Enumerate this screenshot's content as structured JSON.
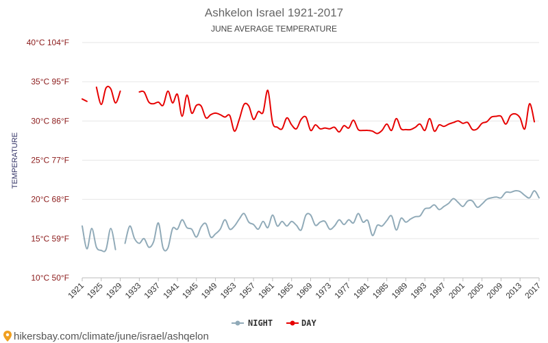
{
  "chart_data": {
    "type": "line",
    "title": "Ashkelon Israel 1921-2017",
    "subtitle": "JUNE AVERAGE TEMPERATURE",
    "ylabel": "TEMPERATURE",
    "xlabel": "",
    "xlim": [
      1921,
      2017
    ],
    "ylim": [
      10,
      40
    ],
    "grid": true,
    "legend": "bottom-center",
    "x_ticks": [
      "1921",
      "1925",
      "1929",
      "1933",
      "1937",
      "1941",
      "1945",
      "1949",
      "1953",
      "1957",
      "1961",
      "1965",
      "1969",
      "1973",
      "1977",
      "1981",
      "1985",
      "1989",
      "1993",
      "1997",
      "2001",
      "2005",
      "2009",
      "2013",
      "2017"
    ],
    "y_ticks": [
      {
        "value": 10,
        "label": "10°C 50°F"
      },
      {
        "value": 15,
        "label": "15°C 59°F"
      },
      {
        "value": 20,
        "label": "20°C 68°F"
      },
      {
        "value": 25,
        "label": "25°C 77°F"
      },
      {
        "value": 30,
        "label": "30°C 86°F"
      },
      {
        "value": 35,
        "label": "35°C 95°F"
      },
      {
        "value": 40,
        "label": "40°C 104°F"
      }
    ],
    "series": [
      {
        "name": "NIGHT",
        "color": "#90aab8",
        "points": [
          [
            1921,
            16.6
          ],
          [
            1922,
            13.7
          ],
          [
            1923,
            16.3
          ],
          [
            1924,
            13.9
          ],
          [
            1925,
            13.5
          ],
          [
            1926,
            13.6
          ],
          [
            1927,
            16.3
          ],
          [
            1928,
            13.6
          ],
          null,
          [
            1930,
            14.4
          ],
          [
            1931,
            16.6
          ],
          [
            1932,
            15.0
          ],
          [
            1933,
            14.4
          ],
          [
            1934,
            15.0
          ],
          [
            1935,
            13.9
          ],
          [
            1936,
            14.6
          ],
          [
            1937,
            17.0
          ],
          [
            1938,
            13.8
          ],
          [
            1939,
            13.8
          ],
          [
            1940,
            16.3
          ],
          [
            1941,
            16.2
          ],
          [
            1942,
            17.4
          ],
          [
            1943,
            16.4
          ],
          [
            1944,
            16.2
          ],
          [
            1945,
            15.2
          ],
          [
            1946,
            16.5
          ],
          [
            1947,
            16.9
          ],
          [
            1948,
            15.2
          ],
          [
            1949,
            15.6
          ],
          [
            1950,
            16.2
          ],
          [
            1951,
            17.4
          ],
          [
            1952,
            16.2
          ],
          [
            1953,
            16.6
          ],
          [
            1954,
            17.5
          ],
          [
            1955,
            18.2
          ],
          [
            1956,
            17.1
          ],
          [
            1957,
            16.8
          ],
          [
            1958,
            16.2
          ],
          [
            1959,
            17.2
          ],
          [
            1960,
            16.4
          ],
          [
            1961,
            18.0
          ],
          [
            1962,
            16.6
          ],
          [
            1963,
            17.2
          ],
          [
            1964,
            16.6
          ],
          [
            1965,
            17.2
          ],
          [
            1966,
            16.7
          ],
          [
            1967,
            16.1
          ],
          [
            1968,
            18.0
          ],
          [
            1969,
            18.0
          ],
          [
            1970,
            16.7
          ],
          [
            1971,
            17.1
          ],
          [
            1972,
            17.2
          ],
          [
            1973,
            16.2
          ],
          [
            1974,
            16.6
          ],
          [
            1975,
            17.4
          ],
          [
            1976,
            16.8
          ],
          [
            1977,
            17.4
          ],
          [
            1978,
            17.0
          ],
          [
            1979,
            18.2
          ],
          [
            1980,
            17.1
          ],
          [
            1981,
            17.3
          ],
          [
            1982,
            15.4
          ],
          [
            1983,
            16.7
          ],
          [
            1984,
            16.6
          ],
          [
            1985,
            17.3
          ],
          [
            1986,
            17.9
          ],
          [
            1987,
            16.1
          ],
          [
            1988,
            17.6
          ],
          [
            1989,
            17.1
          ],
          [
            1990,
            17.5
          ],
          [
            1991,
            17.8
          ],
          [
            1992,
            17.9
          ],
          [
            1993,
            18.8
          ],
          [
            1994,
            18.9
          ],
          [
            1995,
            19.3
          ],
          [
            1996,
            18.7
          ],
          [
            1997,
            19.1
          ],
          [
            1998,
            19.5
          ],
          [
            1999,
            20.1
          ],
          [
            2000,
            19.6
          ],
          [
            2001,
            19.1
          ],
          [
            2002,
            19.8
          ],
          [
            2003,
            19.8
          ],
          [
            2004,
            19.0
          ],
          [
            2005,
            19.4
          ],
          [
            2006,
            20.0
          ],
          [
            2007,
            20.2
          ],
          [
            2008,
            20.3
          ],
          [
            2009,
            20.2
          ],
          [
            2010,
            20.9
          ],
          [
            2011,
            20.9
          ],
          [
            2012,
            21.1
          ],
          [
            2013,
            21.0
          ],
          [
            2014,
            20.5
          ],
          [
            2015,
            20.2
          ],
          [
            2016,
            21.1
          ],
          [
            2017,
            20.2
          ]
        ]
      },
      {
        "name": "DAY",
        "color": "#e60000",
        "points": [
          [
            1921,
            32.8
          ],
          [
            1922,
            32.5
          ],
          null,
          [
            1924,
            34.3
          ],
          [
            1925,
            32.1
          ],
          [
            1926,
            34.2
          ],
          [
            1927,
            34.1
          ],
          [
            1928,
            32.3
          ],
          [
            1929,
            33.8
          ],
          null,
          [
            1933,
            33.7
          ],
          [
            1934,
            33.7
          ],
          [
            1935,
            32.4
          ],
          [
            1936,
            32.2
          ],
          [
            1937,
            32.4
          ],
          [
            1938,
            32.0
          ],
          [
            1939,
            33.8
          ],
          [
            1940,
            32.3
          ],
          [
            1941,
            33.4
          ],
          [
            1942,
            30.6
          ],
          [
            1943,
            33.3
          ],
          [
            1944,
            31.0
          ],
          [
            1945,
            32.0
          ],
          [
            1946,
            31.9
          ],
          [
            1947,
            30.4
          ],
          [
            1948,
            30.8
          ],
          [
            1949,
            31.0
          ],
          [
            1950,
            30.8
          ],
          [
            1951,
            30.5
          ],
          [
            1952,
            30.7
          ],
          [
            1953,
            28.7
          ],
          [
            1954,
            30.2
          ],
          [
            1955,
            32.1
          ],
          [
            1956,
            31.9
          ],
          [
            1957,
            30.2
          ],
          [
            1958,
            31.2
          ],
          [
            1959,
            31.1
          ],
          [
            1960,
            33.9
          ],
          [
            1961,
            29.8
          ],
          [
            1962,
            29.2
          ],
          [
            1963,
            29.0
          ],
          [
            1964,
            30.4
          ],
          [
            1965,
            29.5
          ],
          [
            1966,
            29.0
          ],
          [
            1967,
            30.2
          ],
          [
            1968,
            30.5
          ],
          [
            1969,
            28.8
          ],
          [
            1970,
            29.5
          ],
          [
            1971,
            29.0
          ],
          [
            1972,
            29.1
          ],
          [
            1973,
            29.0
          ],
          [
            1974,
            29.2
          ],
          [
            1975,
            28.6
          ],
          [
            1976,
            29.4
          ],
          [
            1977,
            29.1
          ],
          [
            1978,
            30.1
          ],
          [
            1979,
            28.9
          ],
          [
            1980,
            28.8
          ],
          [
            1981,
            28.8
          ],
          [
            1982,
            28.7
          ],
          [
            1983,
            28.4
          ],
          [
            1984,
            28.8
          ],
          [
            1985,
            29.6
          ],
          [
            1986,
            28.8
          ],
          [
            1987,
            30.3
          ],
          [
            1988,
            29.0
          ],
          [
            1989,
            28.9
          ],
          [
            1990,
            28.9
          ],
          [
            1991,
            29.2
          ],
          [
            1992,
            29.6
          ],
          [
            1993,
            28.8
          ],
          [
            1994,
            30.3
          ],
          [
            1995,
            28.7
          ],
          [
            1996,
            29.5
          ],
          [
            1997,
            29.3
          ],
          [
            1998,
            29.6
          ],
          [
            1999,
            29.8
          ],
          [
            2000,
            30.0
          ],
          [
            2001,
            29.7
          ],
          [
            2002,
            29.8
          ],
          [
            2003,
            28.9
          ],
          [
            2004,
            29.0
          ],
          [
            2005,
            29.7
          ],
          [
            2006,
            29.9
          ],
          [
            2007,
            30.5
          ],
          [
            2008,
            30.6
          ],
          [
            2009,
            30.6
          ],
          [
            2010,
            29.6
          ],
          [
            2011,
            30.7
          ],
          [
            2012,
            30.9
          ],
          [
            2013,
            30.4
          ],
          [
            2014,
            29.0
          ],
          [
            2015,
            32.2
          ],
          [
            2016,
            29.9
          ]
        ]
      }
    ]
  },
  "watermark": "hikersbay.com/climate/june/israel/ashqelon"
}
